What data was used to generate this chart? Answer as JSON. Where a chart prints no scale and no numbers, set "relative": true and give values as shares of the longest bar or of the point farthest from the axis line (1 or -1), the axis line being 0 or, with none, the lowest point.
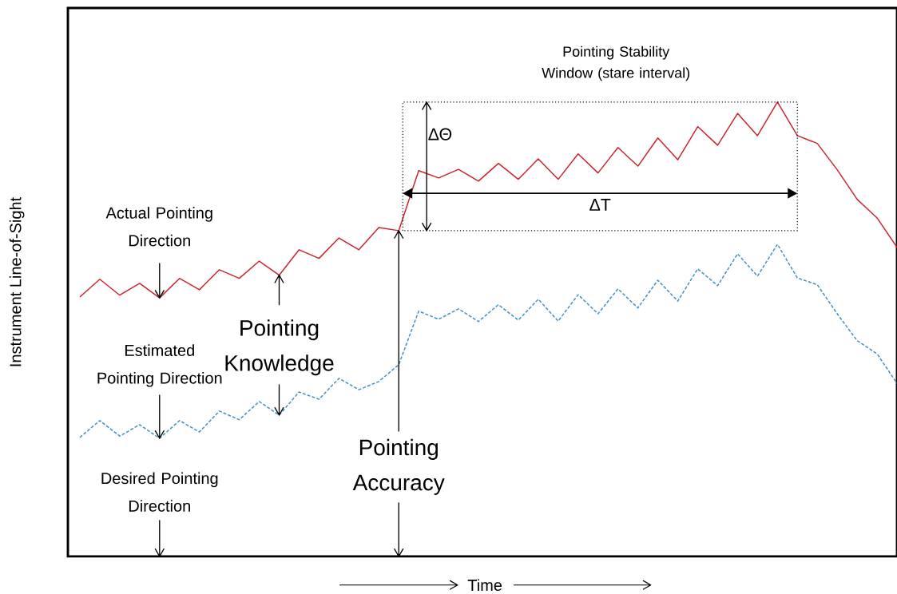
{
  "chart_data": {
    "type": "line",
    "relative": true,
    "title": "Pointing Stability Window (stare interval)",
    "xlabel": "Time",
    "ylabel": "Instrument Line-of-Sight",
    "categories": [
      null,
      null,
      null,
      null,
      null,
      null,
      null,
      null,
      null,
      null,
      null,
      null,
      null,
      null,
      null,
      null,
      null,
      null,
      null,
      null,
      null,
      null,
      null,
      null,
      null,
      null,
      null,
      null,
      null,
      null,
      null,
      null,
      null,
      null,
      null,
      null,
      null,
      null,
      null,
      null,
      null,
      null
    ],
    "series": [
      {
        "color": "#cc2229",
        "line_style": "solid",
        "values": [
          0.571,
          0.61,
          0.575,
          0.601,
          0.569,
          0.612,
          0.587,
          0.631,
          0.612,
          0.65,
          0.619,
          0.675,
          0.656,
          0.701,
          0.675,
          0.724,
          0.717,
          0.849,
          0.833,
          0.852,
          0.826,
          0.865,
          0.83,
          0.875,
          0.83,
          0.886,
          0.844,
          0.9,
          0.859,
          0.921,
          0.873,
          0.946,
          0.905,
          0.975,
          0.926,
          1.0,
          0.926,
          0.909,
          0.851,
          0.786,
          0.745,
          0.68
        ]
      },
      {
        "color": "#3a8fc8",
        "line_style": "dashed",
        "values": [
          0.262,
          0.299,
          0.265,
          0.29,
          0.26,
          0.299,
          0.274,
          0.32,
          0.301,
          0.341,
          0.311,
          0.362,
          0.346,
          0.392,
          0.367,
          0.385,
          0.422,
          0.54,
          0.522,
          0.545,
          0.517,
          0.554,
          0.52,
          0.566,
          0.518,
          0.576,
          0.534,
          0.589,
          0.547,
          0.608,
          0.562,
          0.633,
          0.596,
          0.666,
          0.617,
          0.687,
          0.613,
          0.598,
          0.534,
          0.475,
          0.446,
          0.381
        ]
      }
    ],
    "annotations": [
      "ΔΘ",
      "ΔT",
      "Actual Pointing Direction",
      "Estimated Pointing Direction",
      "Desired Pointing Direction",
      "Pointing Knowledge",
      "Pointing Accuracy"
    ]
  }
}
